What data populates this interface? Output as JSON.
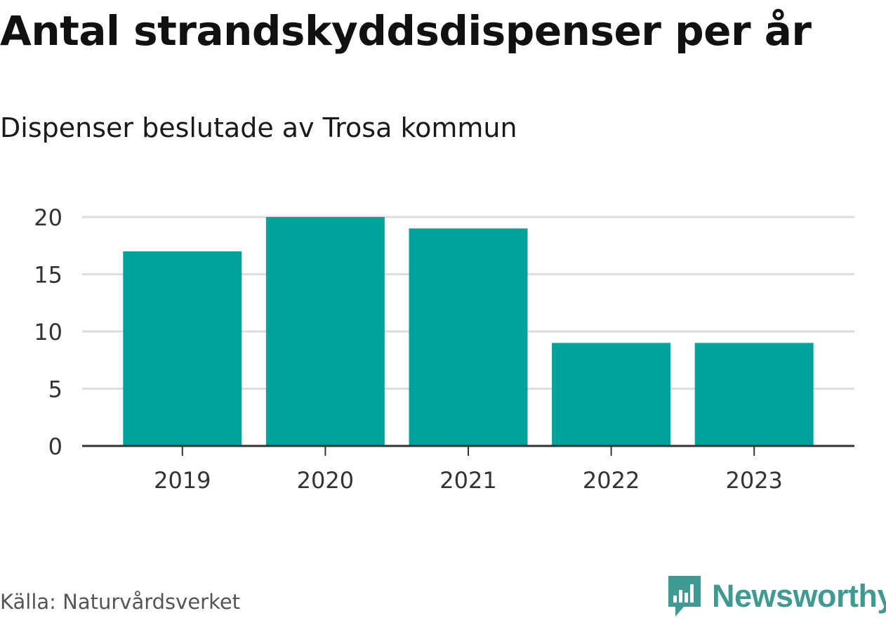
{
  "header": {
    "title": "Antal strandskyddsdispenser per år",
    "subtitle": "Dispenser beslutade av Trosa kommun"
  },
  "chart_data": {
    "type": "bar",
    "categories": [
      "2019",
      "2020",
      "2021",
      "2022",
      "2023"
    ],
    "values": [
      17,
      20,
      19,
      9,
      9
    ],
    "ylim": [
      0,
      20
    ],
    "yticks": [
      0,
      5,
      10,
      15,
      20
    ],
    "xlabel": "",
    "ylabel": "",
    "grid": true,
    "bar_color": "#00a39a"
  },
  "footer": {
    "source": "Källa: Naturvårdsverket",
    "brand_name": "Newsworthy",
    "brand_color": "#3f9a94",
    "brand_icon": "bar-chart-bubble-icon"
  }
}
